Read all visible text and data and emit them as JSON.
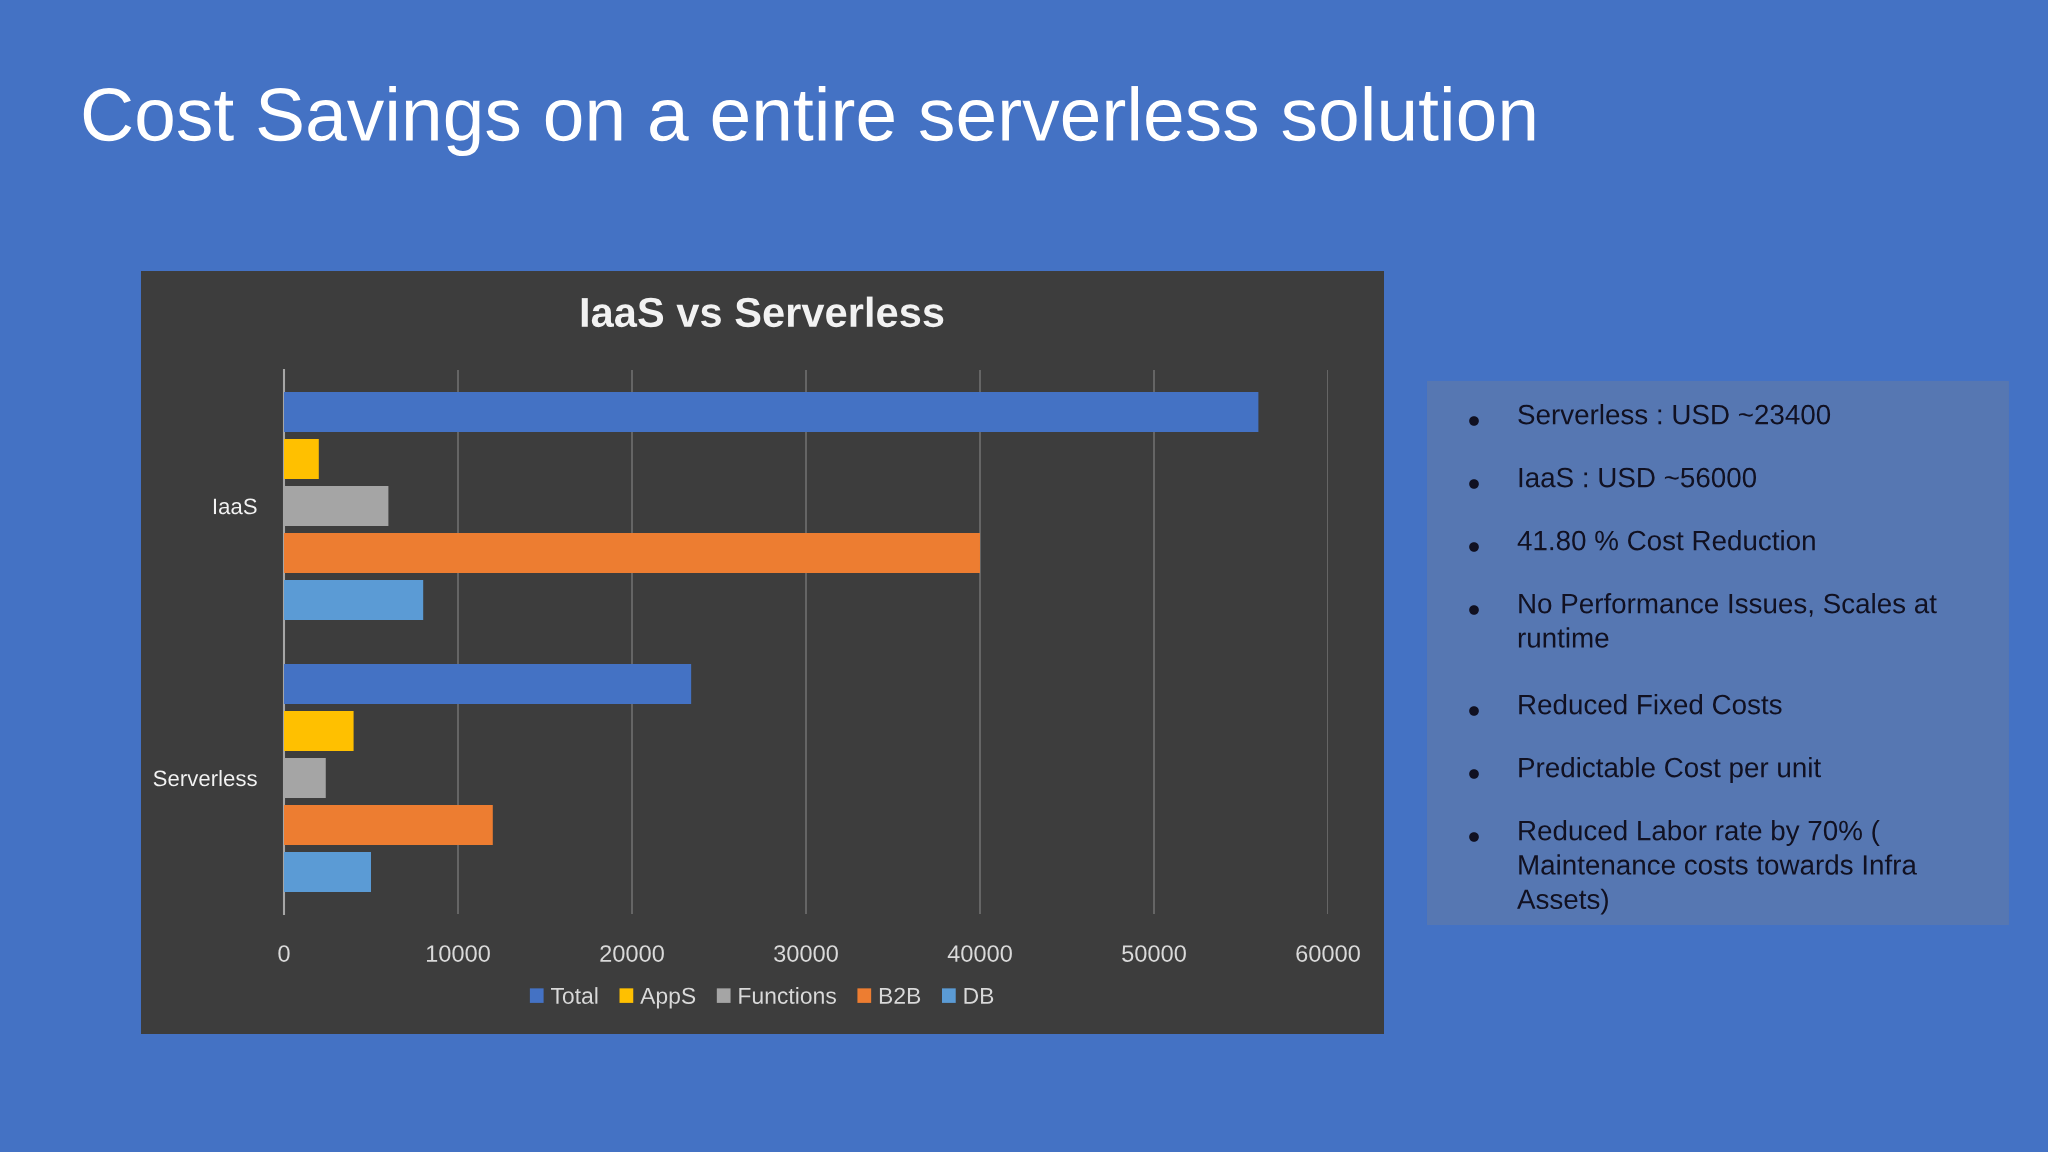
{
  "chart_data": {
    "type": "bar",
    "orientation": "horizontal",
    "title": "Cost Savings on a entire serverless solution",
    "subtitle": "IaaS vs Serverless",
    "categories": [
      "IaaS",
      "Serverless"
    ],
    "series": [
      {
        "name": "Total",
        "color": "#4472c4",
        "values": [
          56000,
          23400
        ]
      },
      {
        "name": "AppS",
        "color": "#ffc000",
        "values": [
          2000,
          4000
        ]
      },
      {
        "name": "Functions",
        "color": "#a5a5a5",
        "values": [
          6000,
          2400
        ]
      },
      {
        "name": "B2B",
        "color": "#ed7d31",
        "values": [
          40000,
          12000
        ]
      },
      {
        "name": "DB",
        "color": "#5b9bd5",
        "values": [
          8000,
          5000
        ]
      }
    ],
    "xlim": [
      0,
      60000
    ],
    "xticks": [
      0,
      10000,
      20000,
      30000,
      40000,
      50000,
      60000
    ],
    "grid": "x",
    "legend": "bottom",
    "annotations": [
      "Serverless : USD ~23400",
      "IaaS : USD ~56000",
      "41.80 % Cost Reduction",
      "No Performance Issues, Scales at runtime",
      "Reduced Fixed Costs",
      "Predictable Cost per unit",
      "Reduced Labor rate by 70% ( Maintenance costs towards Infra Assets)"
    ]
  }
}
